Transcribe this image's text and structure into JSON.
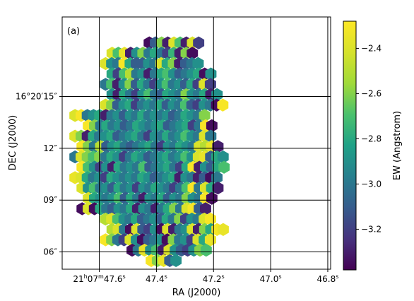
{
  "chart_data": {
    "type": "heatmap",
    "subtype": "hexbin-map",
    "panel_label": "(a)",
    "xlabel": "RA (J2000)",
    "ylabel": "DEC (J2000)",
    "colorbar_label": "EW (Angstrom)",
    "colormap": "viridis",
    "color_range": [
      -3.38,
      -2.28
    ],
    "colorbar_ticks": [
      {
        "value": -2.4,
        "label": "−2.4"
      },
      {
        "value": -2.6,
        "label": "−2.6"
      },
      {
        "value": -2.8,
        "label": "−2.8"
      },
      {
        "value": -3.0,
        "label": "−3.0"
      },
      {
        "value": -3.2,
        "label": "−3.2"
      }
    ],
    "x_ticks": [
      {
        "value": 47.6,
        "label_main": "21",
        "label_sup1": "h",
        "label_mid": "07",
        "label_sup2": "m",
        "label_end": "47.6",
        "label_sup3": "s"
      },
      {
        "value": 47.4,
        "label_main": "47.4",
        "label_sup3": "s"
      },
      {
        "value": 47.2,
        "label_main": "47.2",
        "label_sup3": "s"
      },
      {
        "value": 47.0,
        "label_main": "47.0",
        "label_sup3": "s"
      },
      {
        "value": 46.8,
        "label_main": "46.8",
        "label_sup3": "s"
      }
    ],
    "y_ticks": [
      {
        "value": 15,
        "label": "16°20′15″"
      },
      {
        "value": 12,
        "label": "12″"
      },
      {
        "value": 9,
        "label": "09″"
      },
      {
        "value": 6,
        "label": "06″"
      }
    ],
    "xlim": [
      47.73,
      46.79
    ],
    "ylim": [
      5.0,
      19.6
    ],
    "grid": true,
    "hex_rows": [
      {
        "dec": 18.1,
        "ra_start": 47.425,
        "values": [
          -3.35,
          -3.1,
          -2.6,
          -3.3,
          -2.4,
          -2.7,
          -3.3,
          -2.4,
          -3.2
        ]
      },
      {
        "dec": 17.5,
        "ra_start": 47.555,
        "values": [
          -2.4,
          -2.7,
          -2.35,
          -3.3,
          -2.9,
          -2.6,
          -3.0,
          -2.8,
          -3.0,
          -3.2,
          -2.75,
          -3.3,
          -2.6,
          -3.35
        ]
      },
      {
        "dec": 16.9,
        "ra_start": 47.578,
        "values": [
          -2.4,
          -2.9,
          -3.0,
          -2.3,
          -2.8,
          -3.1,
          -3.1,
          -2.9,
          -3.0,
          -2.4,
          -2.8,
          -2.6,
          -3.3,
          -3.1,
          -3.0,
          -2.9
        ]
      },
      {
        "dec": 16.3,
        "ra_start": 47.555,
        "values": [
          -2.8,
          -3.2,
          -2.7,
          -2.5,
          -3.0,
          -2.9,
          -3.3,
          -3.0,
          -2.8,
          -2.7,
          -2.9,
          -3.1,
          -3.0,
          -2.9,
          -2.8,
          -3.35,
          -2.9
        ]
      },
      {
        "dec": 15.7,
        "ra_start": 47.578,
        "values": [
          -3.0,
          -2.7,
          -3.3,
          -2.9,
          -2.6,
          -3.1,
          -2.8,
          -3.0,
          -3.2,
          -2.9,
          -2.7,
          -3.0,
          -2.9,
          -3.1,
          -2.8,
          -3.2,
          -2.4,
          -3.2
        ]
      },
      {
        "dec": 15.1,
        "ra_start": 47.555,
        "values": [
          -2.9,
          -3.3,
          -2.8,
          -3.0,
          -3.2,
          -2.9,
          -2.7,
          -3.0,
          -3.1,
          -2.8,
          -2.9,
          -3.0,
          -2.6,
          -2.9,
          -3.0,
          -2.8,
          -3.3,
          -2.9
        ]
      },
      {
        "dec": 14.5,
        "ra_start": 47.578,
        "values": [
          -2.4,
          -2.6,
          -3.1,
          -2.9,
          -2.8,
          -3.2,
          -3.0,
          -2.9,
          -3.0,
          -2.8,
          -3.1,
          -2.9,
          -3.0,
          -2.7,
          -3.1,
          -3.2,
          -2.9,
          -3.0,
          -3.35,
          -2.3
        ]
      },
      {
        "dec": 13.9,
        "ra_start": 47.685,
        "values": [
          -2.4,
          -2.3,
          -3.0,
          -2.9,
          -2.8,
          -3.3,
          -3.0,
          -2.9,
          -3.1,
          -2.9,
          -3.0,
          -2.8,
          -3.0,
          -2.9,
          -3.0,
          -2.9,
          -3.1,
          -3.0,
          -2.8,
          -2.9,
          -3.0,
          -2.6
        ]
      },
      {
        "dec": 13.3,
        "ra_start": 47.638,
        "values": [
          -2.3,
          -2.6,
          -3.0,
          -2.8,
          -3.0,
          -2.9,
          -3.1,
          -3.0,
          -2.8,
          -2.9,
          -3.0,
          -2.9,
          -2.8,
          -3.1,
          -3.0,
          -2.9,
          -2.8,
          -3.2,
          -3.0,
          -2.3,
          -3.35
        ]
      },
      {
        "dec": 12.7,
        "ra_start": 47.685,
        "values": [
          -2.4,
          -2.6,
          -3.3,
          -2.8,
          -3.0,
          -2.9,
          -2.8,
          -3.1,
          -3.0,
          -2.9,
          -2.8,
          -3.0,
          -3.2,
          -2.9,
          -3.0,
          -2.8,
          -3.0,
          -2.9,
          -2.7,
          -2.9,
          -3.0,
          -2.4,
          -3.0
        ]
      },
      {
        "dec": 12.1,
        "ra_start": 47.66,
        "values": [
          -2.3,
          -2.6,
          -3.0,
          -2.5,
          -3.1,
          -2.9,
          -2.8,
          -3.0,
          -3.1,
          -3.0,
          -2.9,
          -2.8,
          -3.0,
          -3.2,
          -2.9,
          -3.0,
          -2.8,
          -2.9,
          -3.0,
          -2.4,
          -2.5,
          -2.35,
          -3.3
        ]
      },
      {
        "dec": 11.5,
        "ra_start": 47.685,
        "values": [
          -3.0,
          -2.4,
          -2.6,
          -2.7,
          -2.6,
          -3.0,
          -2.8,
          -2.9,
          -3.2,
          -3.0,
          -2.8,
          -2.9,
          -3.1,
          -3.0,
          -2.9,
          -2.8,
          -3.0,
          -2.9,
          -2.7,
          -2.9,
          -2.4,
          -2.35,
          -3.1,
          -2.8,
          -2.9
        ]
      },
      {
        "dec": 10.9,
        "ra_start": 47.66,
        "values": [
          -2.3,
          -2.7,
          -2.9,
          -3.2,
          -2.9,
          -3.3,
          -2.8,
          -3.0,
          -2.9,
          -3.0,
          -2.7,
          -3.1,
          -3.0,
          -2.9,
          -2.8,
          -3.0,
          -3.2,
          -2.8,
          -2.3,
          -3.3,
          -2.9,
          -3.1,
          -2.8,
          -2.7
        ]
      },
      {
        "dec": 10.3,
        "ra_start": 47.685,
        "values": [
          -2.35,
          -2.4,
          -2.8,
          -3.0,
          -2.9,
          -3.2,
          -2.8,
          -2.9,
          -3.0,
          -2.9,
          -3.0,
          -2.8,
          -2.9,
          -3.1,
          -3.0,
          -2.9,
          -2.8,
          -3.3,
          -2.9,
          -3.0,
          -3.3,
          -3.1,
          -3.35,
          -3.0
        ]
      },
      {
        "dec": 9.7,
        "ra_start": 47.66,
        "values": [
          -2.4,
          -2.9,
          -2.7,
          -3.0,
          -2.9,
          -3.1,
          -2.8,
          -3.0,
          -2.9,
          -3.2,
          -2.9,
          -3.0,
          -2.8,
          -2.9,
          -3.0,
          -3.2,
          -3.0,
          -2.7,
          -2.3,
          -3.0,
          -2.4,
          -2.8,
          -3.3
        ]
      },
      {
        "dec": 9.1,
        "ra_start": 47.638,
        "values": [
          -2.4,
          -2.8,
          -2.9,
          -3.0,
          -2.9,
          -2.7,
          -3.1,
          -2.8,
          -3.0,
          -3.3,
          -2.9,
          -3.0,
          -2.8,
          -3.1,
          -2.9,
          -3.0,
          -2.6,
          -2.9,
          -3.0,
          -2.3,
          -3.35
        ]
      },
      {
        "dec": 8.5,
        "ra_start": 47.66,
        "values": [
          -3.35,
          -2.4,
          -3.35,
          -2.8,
          -3.0,
          -3.1,
          -2.9,
          -3.0,
          -2.8,
          -3.3,
          -2.9,
          -3.0,
          -3.3,
          -3.0,
          -2.8,
          -2.6,
          -3.0,
          -2.4,
          -2.3,
          -3.1,
          -3.3
        ]
      },
      {
        "dec": 7.9,
        "ra_start": 47.578,
        "values": [
          -2.5,
          -2.4,
          -2.7,
          -2.9,
          -3.0,
          -2.8,
          -3.1,
          -3.0,
          -2.9,
          -3.1,
          -2.8,
          -3.0,
          -2.6,
          -3.2,
          -2.9,
          -3.0,
          -2.4,
          -2.3
        ]
      },
      {
        "dec": 7.3,
        "ra_start": 47.555,
        "values": [
          -2.5,
          -2.4,
          -3.0,
          -3.35,
          -2.4,
          -3.1,
          -3.2,
          -2.9,
          -3.35,
          -2.4,
          -3.3,
          -3.0,
          -2.9,
          -2.4,
          -3.3,
          -2.6,
          -2.8,
          -2.3,
          -2.35
        ]
      },
      {
        "dec": 6.7,
        "ra_start": 47.578,
        "values": [
          -2.3,
          -2.6,
          -3.0,
          -3.2,
          -2.4,
          -2.9,
          -3.35,
          -3.1,
          -3.0,
          -2.9,
          -3.35,
          -2.6,
          -3.0,
          -2.9,
          -3.2,
          -2.4,
          -2.8,
          -2.35
        ]
      },
      {
        "dec": 6.1,
        "ra_start": 47.485,
        "values": [
          -3.35,
          -3.0,
          -2.35,
          -2.9,
          -2.7,
          -3.3,
          -2.4,
          -2.9,
          -3.1,
          -3.2,
          -2.9,
          -2.6,
          -2.7
        ]
      },
      {
        "dec": 5.5,
        "ra_start": 47.418,
        "values": [
          -2.3,
          -2.6,
          -2.35,
          -3.1,
          -2.9
        ]
      }
    ]
  }
}
